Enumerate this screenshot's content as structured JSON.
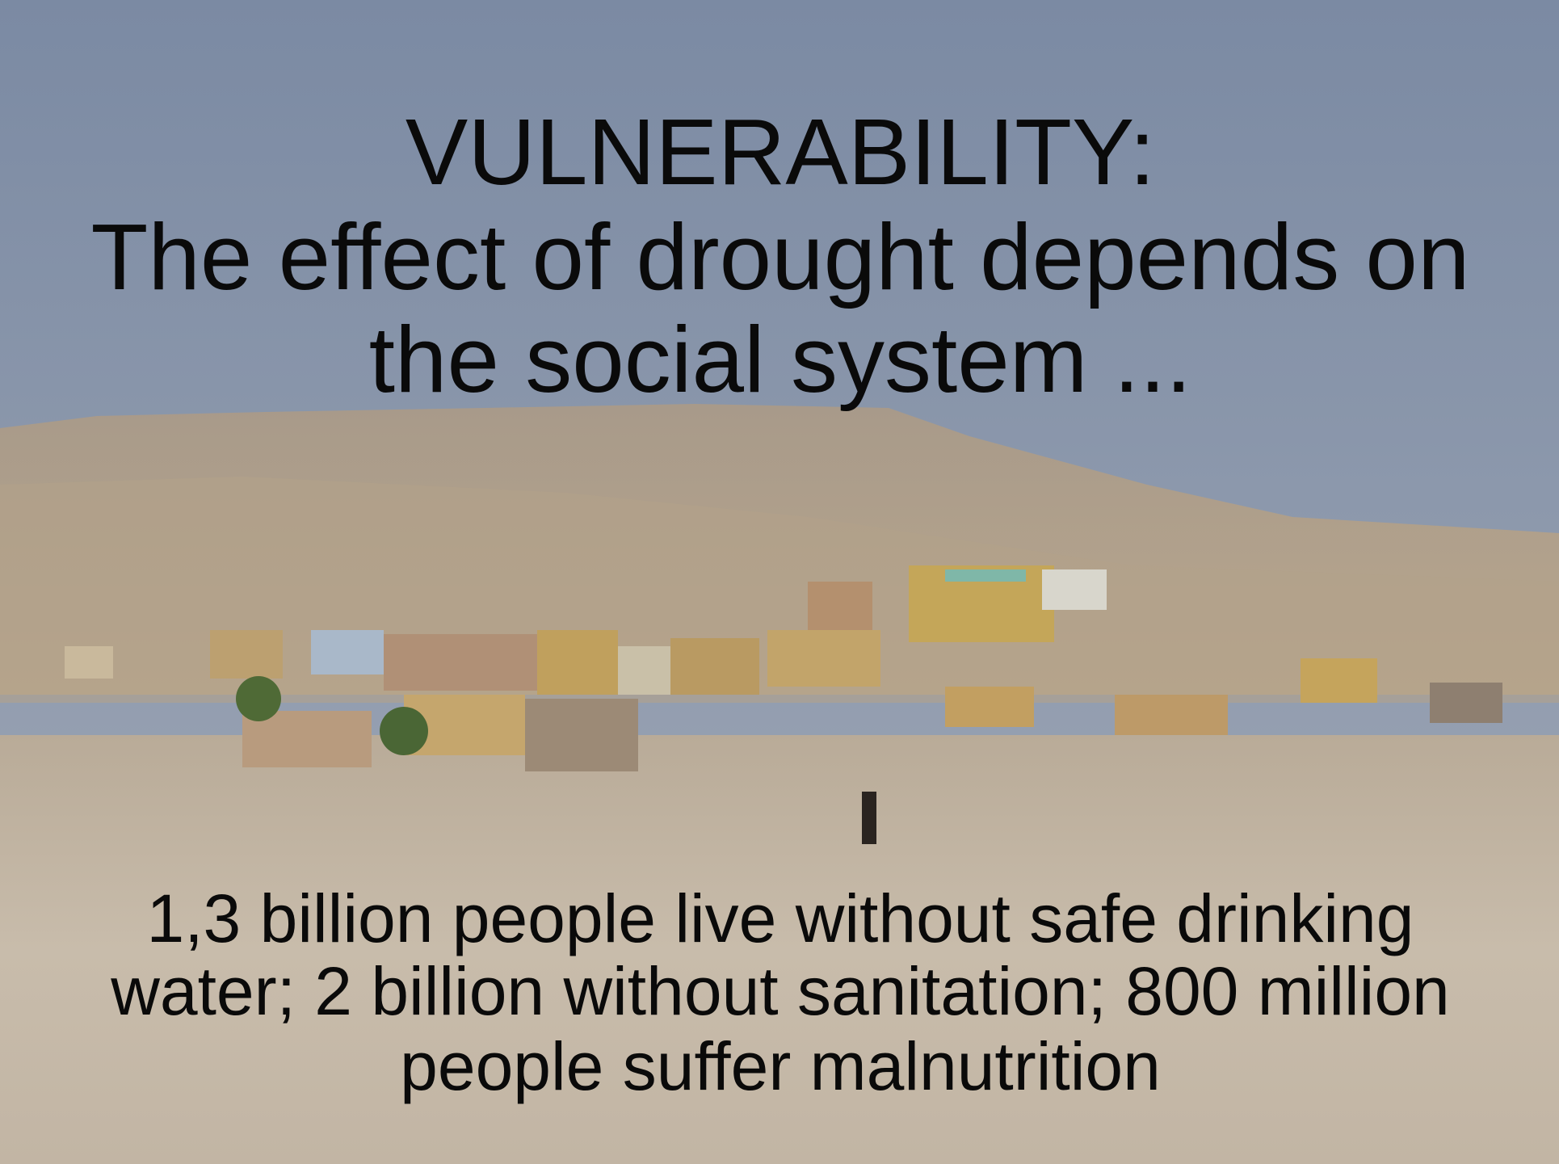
{
  "slide": {
    "title": "VULNERABILITY:",
    "subtitle_lines": [
      "The effect of drought depends on",
      "the social system ..."
    ],
    "caption_lines": [
      "1,3 billion people live without safe drinking",
      "water; 2 billion without sanitation; 800 million",
      "people suffer malnutrition"
    ]
  }
}
